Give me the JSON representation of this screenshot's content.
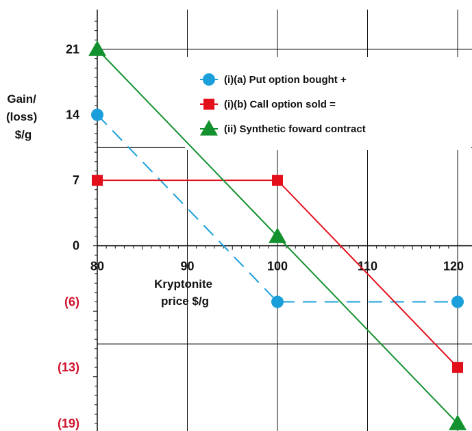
{
  "chart_data": {
    "type": "line",
    "xlabel": "Kryptonite price $/g",
    "ylabel": "Gain/ (loss) $/g",
    "xlim": [
      80,
      120
    ],
    "ylim": [
      -19,
      21
    ],
    "x_ticks": [
      {
        "value": 80,
        "label": "80"
      },
      {
        "value": 90,
        "label": "90"
      },
      {
        "value": 100,
        "label": "100"
      },
      {
        "value": 110,
        "label": "110"
      },
      {
        "value": 120,
        "label": "120"
      }
    ],
    "y_ticks": [
      {
        "value": 21,
        "label": "21",
        "negative": false
      },
      {
        "value": 14,
        "label": "14",
        "negative": false
      },
      {
        "value": 7,
        "label": "7",
        "negative": false
      },
      {
        "value": 0,
        "label": "0",
        "negative": false
      },
      {
        "value": -6,
        "label": "(6)",
        "negative": true
      },
      {
        "value": -13,
        "label": "(13)",
        "negative": true
      },
      {
        "value": -19,
        "label": "(19)",
        "negative": true
      }
    ],
    "grid_h": [
      21,
      10.5,
      0,
      -10.5
    ],
    "grid_v": [
      80,
      90,
      100,
      110,
      120
    ],
    "grid": true,
    "legend_position": "top-right",
    "series": [
      {
        "name": "(i)(a) Put option bought +",
        "color": "#1a9fdb",
        "dash": true,
        "marker": "circle",
        "points": [
          {
            "x": 80,
            "y": 14
          },
          {
            "x": 100,
            "y": -6
          },
          {
            "x": 120,
            "y": -6
          }
        ]
      },
      {
        "name": "(i)(b) Call option sold =",
        "color": "#e3101b",
        "dash": false,
        "marker": "square",
        "points": [
          {
            "x": 80,
            "y": 7
          },
          {
            "x": 100,
            "y": 7
          },
          {
            "x": 120,
            "y": -13
          }
        ]
      },
      {
        "name": "(ii) Synthetic foward contract",
        "color": "#14912f",
        "dash": false,
        "marker": "triangle",
        "points": [
          {
            "x": 80,
            "y": 21
          },
          {
            "x": 100,
            "y": 1
          },
          {
            "x": 120,
            "y": -19
          }
        ]
      }
    ],
    "colors": {
      "negative_label": "#d0112b",
      "axis": "#111111",
      "grid": "#111111"
    }
  }
}
